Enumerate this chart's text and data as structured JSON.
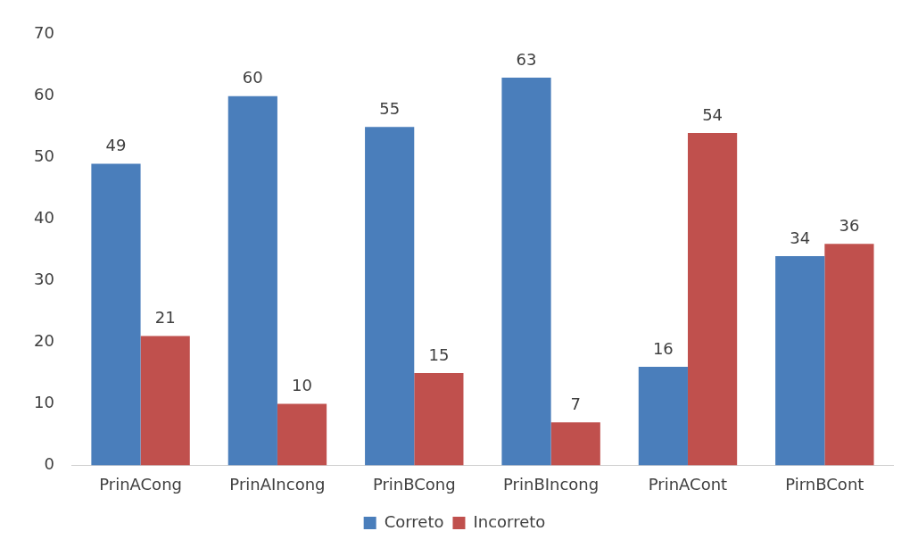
{
  "chart_data": {
    "type": "bar",
    "categories": [
      "PrinACong",
      "PrinAIncong",
      "PrinBCong",
      "PrinBIncong",
      "PrinACont",
      "PirnBCont"
    ],
    "series": [
      {
        "name": "Correto",
        "color": "#4a7ebb",
        "values": [
          49,
          60,
          55,
          63,
          16,
          34
        ]
      },
      {
        "name": "Incorreto",
        "color": "#c0504d",
        "values": [
          21,
          10,
          15,
          7,
          54,
          36
        ]
      }
    ],
    "ylim": [
      0,
      70
    ],
    "yticks": [
      0,
      10,
      20,
      30,
      40,
      50,
      60,
      70
    ],
    "grid": false,
    "legend": "bottom",
    "data_labels": true
  }
}
